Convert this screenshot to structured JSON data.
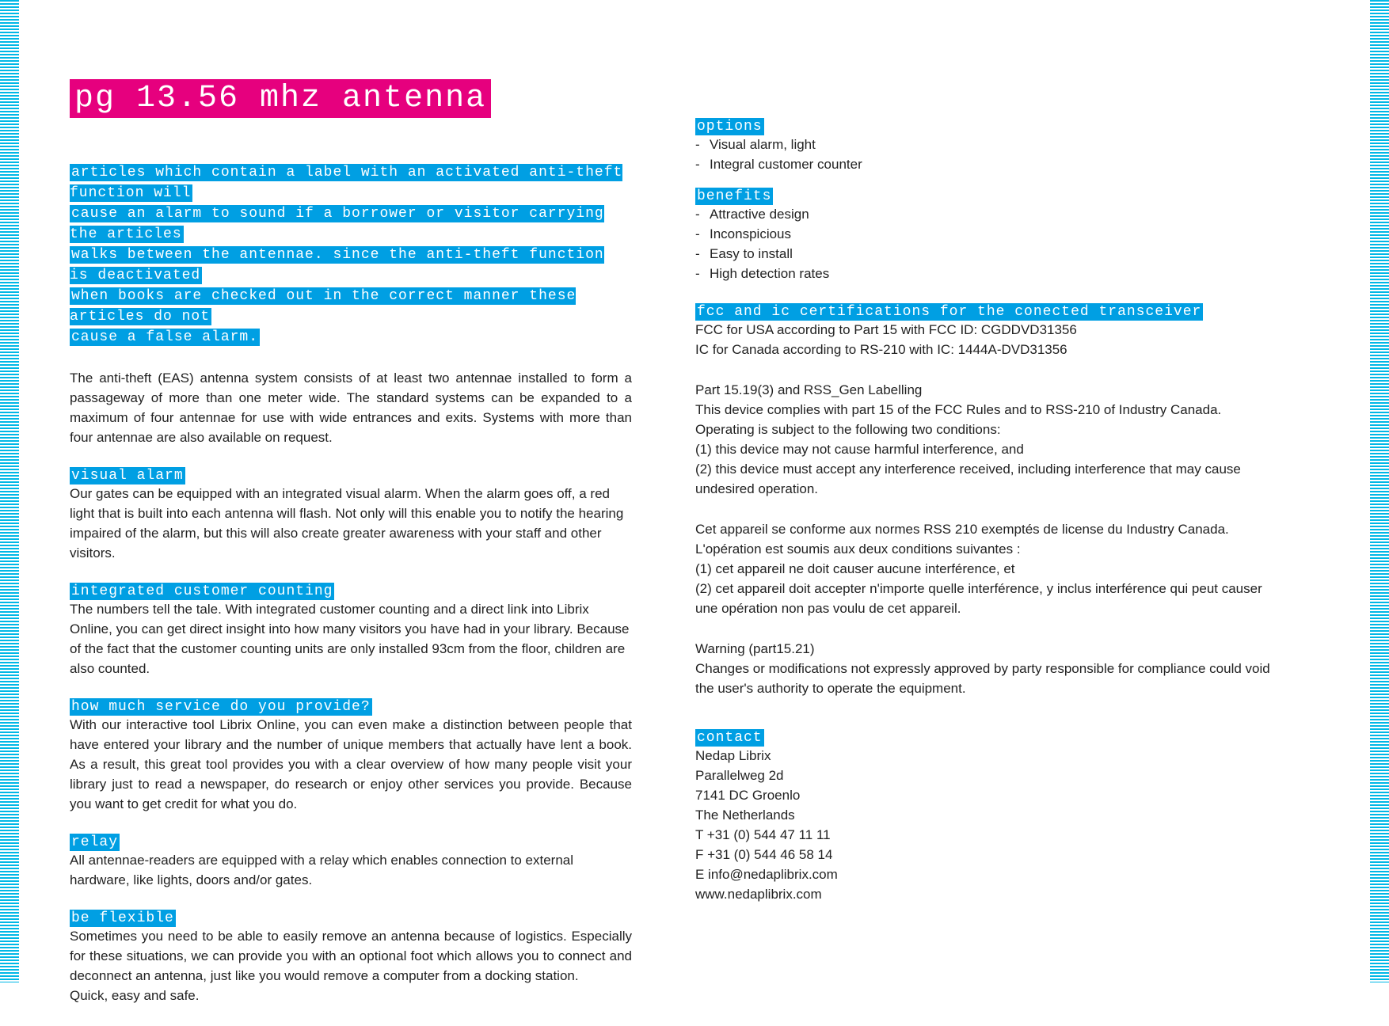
{
  "colors": {
    "magenta": "#e6007e",
    "cyan": "#009fe3",
    "stripe": "#00b8e6",
    "text": "#222222",
    "bg": "#ffffff"
  },
  "title": "pg 13.56 mhz antenna",
  "intro_lines": [
    "articles which contain a label with an activated anti-theft function will",
    "cause an alarm to sound if a borrower or visitor carrying the articles",
    "walks between the antennae. since the anti-theft function is deactivated",
    "when books are checked out in the correct manner these articles do not",
    "cause a false alarm."
  ],
  "intro_para": "The anti-theft (EAS) antenna system consists of at least two antennae installed to form a passageway of more than one meter wide. The standard systems can be expanded to a maximum of four antennae for use with wide entrances and exits. Systems with more than four antennae are also available on request.",
  "left_sections": [
    {
      "head": "visual alarm",
      "body": "Our gates can be equipped with an integrated visual alarm. When the alarm goes off, a red light that is built into each antenna will flash. Not only will this enable you to notify the hearing impaired of the alarm, but this will also create greater awareness with your staff and other visitors.",
      "justify": false
    },
    {
      "head": "integrated customer counting",
      "body": "The numbers tell the tale. With integrated customer counting and a direct link into Librix Online, you can get direct insight into how many visitors you have had in your library. Because of the fact that the customer counting units are only installed 93cm from the floor, children are also counted.",
      "justify": false
    },
    {
      "head": "how much service do you provide?",
      "body": "With our interactive tool Librix Online, you can even make a distinction between people that have entered your library and the number of unique members that actually have lent a book. As a result, this great tool provides you with a clear overview of how many people visit your library just to read a newspaper, do research or enjoy other services you provide. Because you want to get credit for what you do.",
      "justify": true
    },
    {
      "head": "relay",
      "body": "All antennae-readers are equipped with a relay which enables connection to external hardware, like lights, doors and/or gates.",
      "justify": false
    },
    {
      "head": "be flexible",
      "body": "Sometimes you need to be able to easily remove an antenna because of logistics. Especially for these situations, we can provide you with an optional foot which allows you to connect and deconnect an antenna, just like you would remove a computer from a docking station.\nQuick, easy and safe.",
      "justify": true
    }
  ],
  "options_head": "options",
  "options": [
    "Visual alarm, light",
    "Integral customer counter"
  ],
  "benefits_head": "benefits",
  "benefits": [
    "Attractive design",
    "Inconspicious",
    "Easy to install",
    "High detection rates"
  ],
  "fcc_head": "fcc and ic certifications for the conected transceiver",
  "fcc_lines": [
    "FCC for USA according to Part 15 with FCC ID: CGDDVD31356",
    "IC for Canada according to RS-210 with IC: 1444A-DVD31356"
  ],
  "fcc_part_head": "Part 15.19(3) and RSS_Gen Labelling",
  "fcc_part_body": "This device complies with part 15 of the FCC Rules and to RSS-210 of Industry Canada. Operating is subject to the following two conditions:\n(1) this device may not cause harmful interference, and\n(2) this device must accept any interference received, including interference that may cause undesired operation.",
  "fcc_fr_body": "Cet appareil se conforme aux normes RSS 210 exemptés de license du Industry Canada.\nL'opération est soumis aux deux conditions suivantes :\n(1) cet appareil ne doit causer aucune interférence, et\n(2) cet appareil doit accepter n'importe quelle interférence, y inclus interférence qui peut causer une opération non pas voulu de cet appareil.",
  "warning_head": "Warning (part15.21)",
  "warning_body": "Changes or modifications not expressly approved by party responsible for compliance could void the user's authority to operate the equipment.",
  "contact_head": "contact",
  "contact_lines": [
    "Nedap Librix",
    "Parallelweg 2d",
    "7141 DC Groenlo",
    "The Netherlands",
    "T  +31 (0) 544 47 11 11",
    "F  +31 (0) 544 46 58 14",
    "E  info@nedaplibrix.com",
    "www.nedaplibrix.com"
  ]
}
